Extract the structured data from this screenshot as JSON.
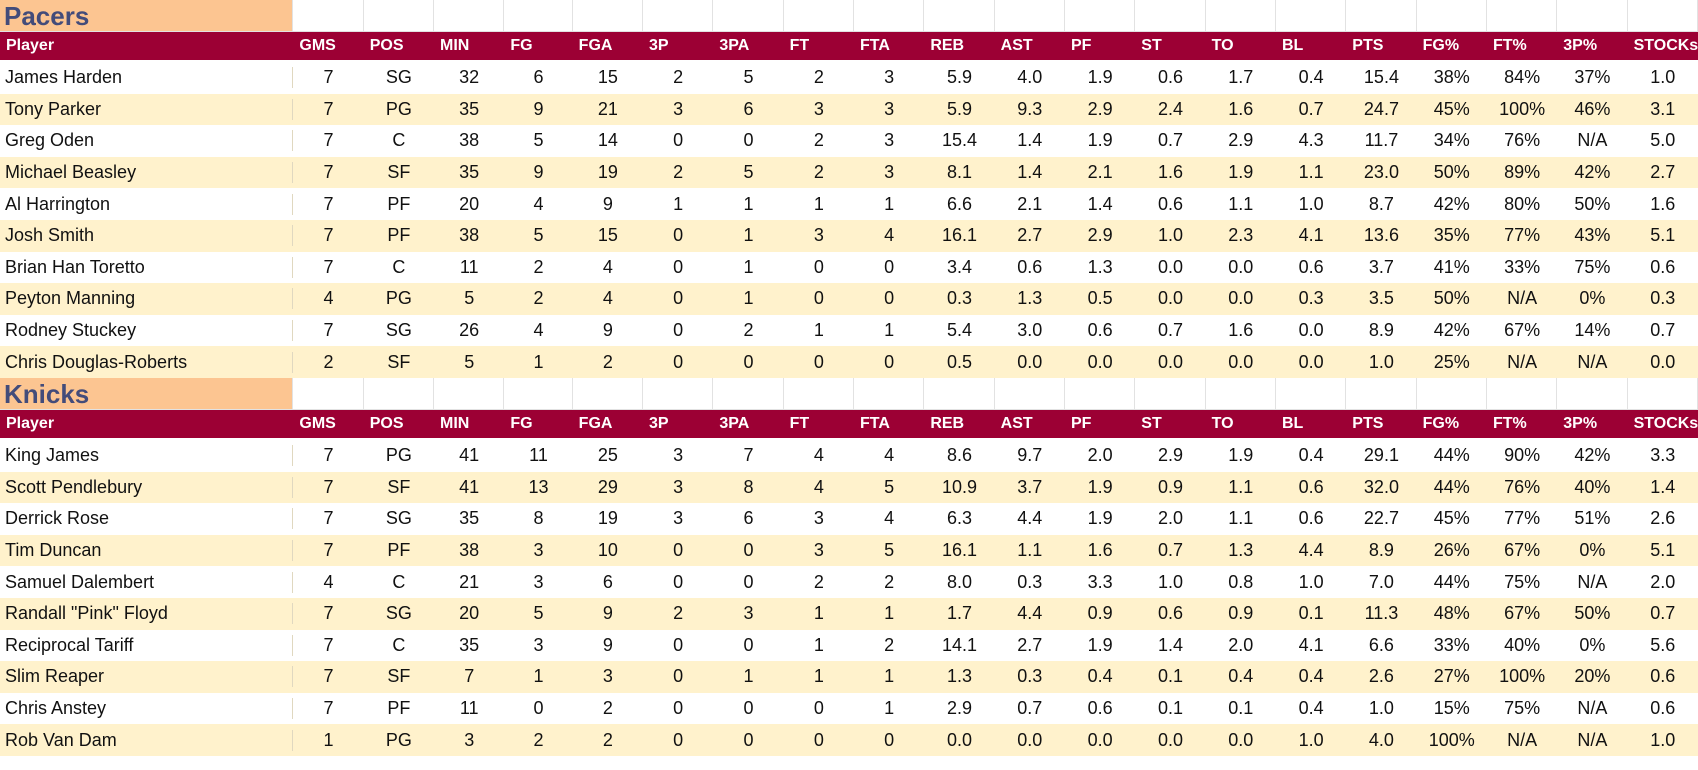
{
  "columns": [
    "Player",
    "GMS",
    "POS",
    "MIN",
    "FG",
    "FGA",
    "3P",
    "3PA",
    "FT",
    "FTA",
    "REB",
    "AST",
    "PF",
    "ST",
    "TO",
    "BL",
    "PTS",
    "FG%",
    "FT%",
    "3P%",
    "STOCKs"
  ],
  "teams": [
    {
      "name": "Pacers",
      "rows": [
        [
          "James Harden",
          "7",
          "SG",
          "32",
          "6",
          "15",
          "2",
          "5",
          "2",
          "3",
          "5.9",
          "4.0",
          "1.9",
          "0.6",
          "1.7",
          "0.4",
          "15.4",
          "38%",
          "84%",
          "37%",
          "1.0"
        ],
        [
          "Tony Parker",
          "7",
          "PG",
          "35",
          "9",
          "21",
          "3",
          "6",
          "3",
          "3",
          "5.9",
          "9.3",
          "2.9",
          "2.4",
          "1.6",
          "0.7",
          "24.7",
          "45%",
          "100%",
          "46%",
          "3.1"
        ],
        [
          "Greg Oden",
          "7",
          "C",
          "38",
          "5",
          "14",
          "0",
          "0",
          "2",
          "3",
          "15.4",
          "1.4",
          "1.9",
          "0.7",
          "2.9",
          "4.3",
          "11.7",
          "34%",
          "76%",
          "N/A",
          "5.0"
        ],
        [
          "Michael Beasley",
          "7",
          "SF",
          "35",
          "9",
          "19",
          "2",
          "5",
          "2",
          "3",
          "8.1",
          "1.4",
          "2.1",
          "1.6",
          "1.9",
          "1.1",
          "23.0",
          "50%",
          "89%",
          "42%",
          "2.7"
        ],
        [
          "Al Harrington",
          "7",
          "PF",
          "20",
          "4",
          "9",
          "1",
          "1",
          "1",
          "1",
          "6.6",
          "2.1",
          "1.4",
          "0.6",
          "1.1",
          "1.0",
          "8.7",
          "42%",
          "80%",
          "50%",
          "1.6"
        ],
        [
          "Josh Smith",
          "7",
          "PF",
          "38",
          "5",
          "15",
          "0",
          "1",
          "3",
          "4",
          "16.1",
          "2.7",
          "2.9",
          "1.0",
          "2.3",
          "4.1",
          "13.6",
          "35%",
          "77%",
          "43%",
          "5.1"
        ],
        [
          "Brian Han Toretto",
          "7",
          "C",
          "11",
          "2",
          "4",
          "0",
          "1",
          "0",
          "0",
          "3.4",
          "0.6",
          "1.3",
          "0.0",
          "0.0",
          "0.6",
          "3.7",
          "41%",
          "33%",
          "75%",
          "0.6"
        ],
        [
          "Peyton Manning",
          "4",
          "PG",
          "5",
          "2",
          "4",
          "0",
          "1",
          "0",
          "0",
          "0.3",
          "1.3",
          "0.5",
          "0.0",
          "0.0",
          "0.3",
          "3.5",
          "50%",
          "N/A",
          "0%",
          "0.3"
        ],
        [
          "Rodney Stuckey",
          "7",
          "SG",
          "26",
          "4",
          "9",
          "0",
          "2",
          "1",
          "1",
          "5.4",
          "3.0",
          "0.6",
          "0.7",
          "1.6",
          "0.0",
          "8.9",
          "42%",
          "67%",
          "14%",
          "0.7"
        ],
        [
          "Chris Douglas-Roberts",
          "2",
          "SF",
          "5",
          "1",
          "2",
          "0",
          "0",
          "0",
          "0",
          "0.5",
          "0.0",
          "0.0",
          "0.0",
          "0.0",
          "0.0",
          "1.0",
          "25%",
          "N/A",
          "N/A",
          "0.0"
        ]
      ]
    },
    {
      "name": "Knicks",
      "rows": [
        [
          "King James",
          "7",
          "PG",
          "41",
          "11",
          "25",
          "3",
          "7",
          "4",
          "4",
          "8.6",
          "9.7",
          "2.0",
          "2.9",
          "1.9",
          "0.4",
          "29.1",
          "44%",
          "90%",
          "42%",
          "3.3"
        ],
        [
          "Scott Pendlebury",
          "7",
          "SF",
          "41",
          "13",
          "29",
          "3",
          "8",
          "4",
          "5",
          "10.9",
          "3.7",
          "1.9",
          "0.9",
          "1.1",
          "0.6",
          "32.0",
          "44%",
          "76%",
          "40%",
          "1.4"
        ],
        [
          "Derrick Rose",
          "7",
          "SG",
          "35",
          "8",
          "19",
          "3",
          "6",
          "3",
          "4",
          "6.3",
          "4.4",
          "1.9",
          "2.0",
          "1.1",
          "0.6",
          "22.7",
          "45%",
          "77%",
          "51%",
          "2.6"
        ],
        [
          "Tim Duncan",
          "7",
          "PF",
          "38",
          "3",
          "10",
          "0",
          "0",
          "3",
          "5",
          "16.1",
          "1.1",
          "1.6",
          "0.7",
          "1.3",
          "4.4",
          "8.9",
          "26%",
          "67%",
          "0%",
          "5.1"
        ],
        [
          "Samuel Dalembert",
          "4",
          "C",
          "21",
          "3",
          "6",
          "0",
          "0",
          "2",
          "2",
          "8.0",
          "0.3",
          "3.3",
          "1.0",
          "0.8",
          "1.0",
          "7.0",
          "44%",
          "75%",
          "N/A",
          "2.0"
        ],
        [
          "Randall \"Pink\" Floyd",
          "7",
          "SG",
          "20",
          "5",
          "9",
          "2",
          "3",
          "1",
          "1",
          "1.7",
          "4.4",
          "0.9",
          "0.6",
          "0.9",
          "0.1",
          "11.3",
          "48%",
          "67%",
          "50%",
          "0.7"
        ],
        [
          "Reciprocal Tariff",
          "7",
          "C",
          "35",
          "3",
          "9",
          "0",
          "0",
          "1",
          "2",
          "14.1",
          "2.7",
          "1.9",
          "1.4",
          "2.0",
          "4.1",
          "6.6",
          "33%",
          "40%",
          "0%",
          "5.6"
        ],
        [
          "Slim Reaper",
          "7",
          "SF",
          "7",
          "1",
          "3",
          "0",
          "1",
          "1",
          "1",
          "1.3",
          "0.3",
          "0.4",
          "0.1",
          "0.4",
          "0.4",
          "2.6",
          "27%",
          "100%",
          "20%",
          "0.6"
        ],
        [
          "Chris Anstey",
          "7",
          "PF",
          "11",
          "0",
          "2",
          "0",
          "0",
          "0",
          "1",
          "2.9",
          "0.7",
          "0.6",
          "0.1",
          "0.1",
          "0.4",
          "1.0",
          "15%",
          "75%",
          "N/A",
          "0.6"
        ],
        [
          "Rob Van Dam",
          "1",
          "PG",
          "3",
          "2",
          "2",
          "0",
          "0",
          "0",
          "0",
          "0.0",
          "0.0",
          "0.0",
          "0.0",
          "0.0",
          "1.0",
          "4.0",
          "100%",
          "N/A",
          "N/A",
          "1.0"
        ]
      ]
    }
  ]
}
